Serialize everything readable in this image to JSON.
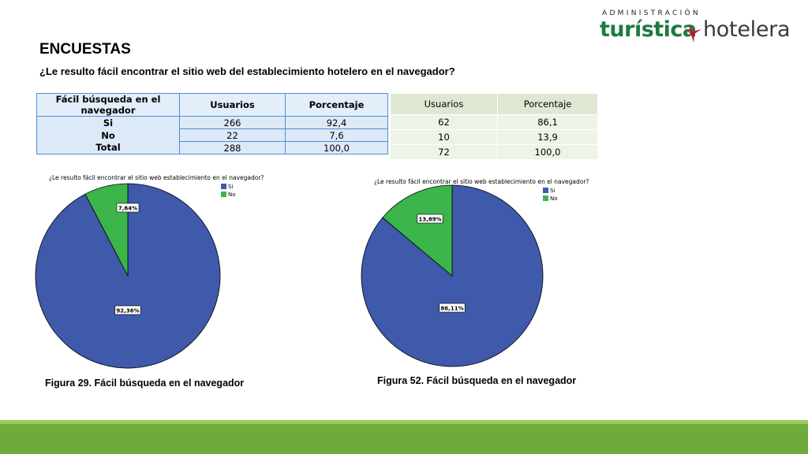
{
  "logo": {
    "top": "ADMINISTRACIÓN",
    "main": "turística",
    "sub": "hotelera"
  },
  "title": "ENCUESTAS",
  "question": "¿Le resulto fácil encontrar el sitio web del establecimiento hotelero en el navegador?",
  "table1": {
    "headers": [
      "Fácil búsqueda en el navegador",
      "Usuarios",
      "Porcentaje"
    ],
    "rows": [
      {
        "label": "Si",
        "usuarios": "266",
        "porcentaje": "92,4"
      },
      {
        "label": "No",
        "usuarios": "22",
        "porcentaje": "7,6"
      },
      {
        "label": "Total",
        "usuarios": "288",
        "porcentaje": "100,0"
      }
    ]
  },
  "table2": {
    "headers": [
      "Usuarios",
      "Porcentaje"
    ],
    "rows": [
      {
        "usuarios": "62",
        "porcentaje": "86,1"
      },
      {
        "usuarios": "10",
        "porcentaje": "13,9"
      },
      {
        "usuarios": "72",
        "porcentaje": "100,0"
      }
    ]
  },
  "colors": {
    "si": "#3f59ab",
    "no": "#3bb54a",
    "footer": "#6fab3b",
    "footer_light": "#9ccb5b",
    "logo_green": "#1e7b3f",
    "logo_bird": "#c8102e"
  },
  "chart_data": [
    {
      "type": "pie",
      "title": "¿Le resulto fácil encontrar el sitio web establecimiento en el navegador?",
      "legend": [
        "Si",
        "No"
      ],
      "legend_placement": "top-right",
      "values": [
        92.36,
        7.64
      ],
      "labels": [
        "92,36%",
        "7,64%"
      ]
    },
    {
      "type": "pie",
      "title": "¿Le resulto fácil encontrar el sitio web establecimiento en el navegador?",
      "legend": [
        "Si",
        "No"
      ],
      "legend_placement": "top-right",
      "values": [
        86.11,
        13.89
      ],
      "labels": [
        "86,11%",
        "13,89%"
      ]
    }
  ],
  "captions": [
    "Figura 29. Fácil búsqueda en el navegador",
    "Figura 52. Fácil búsqueda en el navegador"
  ]
}
